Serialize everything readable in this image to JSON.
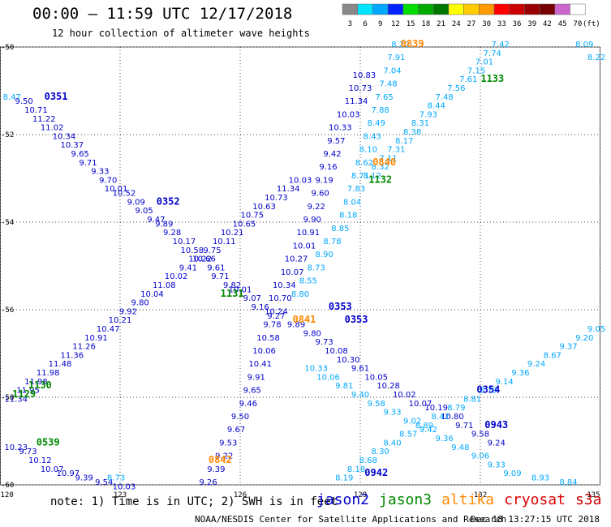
{
  "title": "00:00 – 11:59 UTC 12/17/2018",
  "subtitle": "12 hour collection of altimeter wave heights",
  "note": "note: 1) Time is in UTC; 2) SWH is in feet",
  "footer_left": "NOAA/NESDIS Center for Satellite Applications and Research",
  "footer_right": "Dec 18 13:27:15 UTC 2018",
  "satellites": [
    {
      "name": "jason2",
      "color": "#0000cc"
    },
    {
      "name": "jason3",
      "color": "#008800"
    },
    {
      "name": "altika",
      "color": "#ff8800"
    },
    {
      "name": "cryosat",
      "color": "#dd0000"
    },
    {
      "name": "s3a",
      "color": "#cc0000"
    }
  ],
  "color_legend": {
    "unit": "(ft)",
    "labels": [
      "3",
      "6",
      "9",
      "12",
      "15",
      "18",
      "21",
      "24",
      "27",
      "30",
      "33",
      "36",
      "39",
      "42",
      "45",
      "70"
    ],
    "colors": [
      "#888888",
      "#00e5ff",
      "#00a8ff",
      "#0022ff",
      "#00dd00",
      "#00aa00",
      "#007700",
      "#ffff00",
      "#ffcc00",
      "#ff9900",
      "#ff0000",
      "#cc0000",
      "#990000",
      "#770000",
      "#cc66cc",
      "#ffffff"
    ]
  },
  "chart_data": {
    "type": "scatter",
    "xlim": [
      120,
      135
    ],
    "ylim": [
      -60,
      -50
    ],
    "x_ticks": [
      "120",
      "123",
      "126",
      "129",
      "132",
      "135"
    ],
    "y_ticks": [
      "-50",
      "-52",
      "-54",
      "-56",
      "-58",
      "-60"
    ],
    "grid": true,
    "time_labels": [
      {
        "text": "0351",
        "color": "#0000cc",
        "x": 121.4,
        "y": -51.2
      },
      {
        "text": "0352",
        "color": "#0000cc",
        "x": 124.2,
        "y": -53.6
      },
      {
        "text": "0353",
        "color": "#0000cc",
        "x": 128.5,
        "y": -56.0
      },
      {
        "text": "0353",
        "color": "#0000cc",
        "x": 128.9,
        "y": -56.3
      },
      {
        "text": "0354",
        "color": "#0000cc",
        "x": 132.2,
        "y": -57.9
      },
      {
        "text": "0943",
        "color": "#0000cc",
        "x": 132.4,
        "y": -58.7
      },
      {
        "text": "0942",
        "color": "#0000cc",
        "x": 129.4,
        "y": -59.8
      },
      {
        "text": "0839",
        "color": "#ff8800",
        "x": 130.3,
        "y": -50.0
      },
      {
        "text": "0840",
        "color": "#ff8800",
        "x": 129.6,
        "y": -52.7
      },
      {
        "text": "0841",
        "color": "#ff8800",
        "x": 127.6,
        "y": -56.3
      },
      {
        "text": "0842",
        "color": "#ff8800",
        "x": 125.5,
        "y": -59.5
      },
      {
        "text": "1133",
        "color": "#008800",
        "x": 132.3,
        "y": -50.8
      },
      {
        "text": "1132",
        "color": "#008800",
        "x": 129.5,
        "y": -53.1
      },
      {
        "text": "1131",
        "color": "#008800",
        "x": 125.8,
        "y": -55.7
      },
      {
        "text": "1130",
        "color": "#008800",
        "x": 121.0,
        "y": -57.8
      },
      {
        "text": "1129",
        "color": "#008800",
        "x": 120.6,
        "y": -58.0
      },
      {
        "text": "0539",
        "color": "#008800",
        "x": 121.2,
        "y": -59.1
      }
    ],
    "series": [
      {
        "track": "jason2-0351",
        "color": "#0000cc",
        "points": [
          [
            120.6,
            -51.3,
            "9.50"
          ],
          [
            120.9,
            -51.5,
            "10.71"
          ],
          [
            121.1,
            -51.7,
            "11.22"
          ],
          [
            121.3,
            -51.9,
            "11.02"
          ],
          [
            121.6,
            -52.1,
            "10.34"
          ],
          [
            121.8,
            -52.3,
            "10.37"
          ],
          [
            122.0,
            -52.5,
            "9.65"
          ],
          [
            122.2,
            -52.7,
            "9.71"
          ],
          [
            122.5,
            -52.9,
            "9.33"
          ],
          [
            122.7,
            -53.1,
            "9.70"
          ],
          [
            122.9,
            -53.3,
            "10.01"
          ],
          [
            123.1,
            -53.4,
            "10.52"
          ],
          [
            123.4,
            -53.6,
            "9.09"
          ],
          [
            123.6,
            -53.8,
            "9.05"
          ],
          [
            123.9,
            -54.0,
            "9.47"
          ],
          [
            124.1,
            -54.1,
            "9.89"
          ],
          [
            124.3,
            -54.3,
            "9.28"
          ],
          [
            124.6,
            -54.5,
            "10.17"
          ],
          [
            124.8,
            -54.7,
            "10.58"
          ],
          [
            125.1,
            -54.9,
            "10.66"
          ],
          [
            125.4,
            -55.1,
            "9.61"
          ],
          [
            125.5,
            -55.3,
            "9.71"
          ],
          [
            125.8,
            -55.5,
            "9.82"
          ],
          [
            126.0,
            -55.6,
            "10.01"
          ],
          [
            126.3,
            -55.8,
            "9.07"
          ],
          [
            126.5,
            -56.0,
            "9.16"
          ],
          [
            126.9,
            -56.2,
            "9.27"
          ],
          [
            127.4,
            -56.4,
            "9.89"
          ],
          [
            127.8,
            -56.6,
            "9.80"
          ],
          [
            128.1,
            -56.8,
            "9.73"
          ],
          [
            128.4,
            -57.0,
            "10.08"
          ],
          [
            128.7,
            -57.2,
            "10.30"
          ],
          [
            129.0,
            -57.4,
            "9.61"
          ],
          [
            129.4,
            -57.6,
            "10.05"
          ],
          [
            129.7,
            -57.8,
            "10.28"
          ],
          [
            130.1,
            -58.0,
            "10.02"
          ],
          [
            130.5,
            -58.2,
            "10.07"
          ],
          [
            130.9,
            -58.3,
            "10.19"
          ],
          [
            131.3,
            -58.5,
            "10.80"
          ],
          [
            131.6,
            -58.7,
            "9.71"
          ],
          [
            132.0,
            -58.9,
            "9.58"
          ],
          [
            132.4,
            -59.1,
            "9.24"
          ]
        ]
      },
      {
        "track": "jason2-0942",
        "color": "#0000cc",
        "points": [
          [
            125.2,
            -60.0,
            "9.26"
          ],
          [
            125.4,
            -59.7,
            "9.39"
          ],
          [
            125.6,
            -59.4,
            "9.22"
          ],
          [
            125.7,
            -59.1,
            "9.53"
          ],
          [
            125.9,
            -58.8,
            "9.67"
          ],
          [
            126.0,
            -58.5,
            "9.50"
          ],
          [
            126.2,
            -58.2,
            "9.46"
          ],
          [
            126.3,
            -57.9,
            "9.65"
          ],
          [
            126.4,
            -57.6,
            "9.91"
          ],
          [
            126.5,
            -57.3,
            "10.41"
          ],
          [
            126.6,
            -57.0,
            "10.06"
          ],
          [
            126.7,
            -56.7,
            "10.58"
          ],
          [
            126.8,
            -56.4,
            "9.78"
          ],
          [
            126.9,
            -56.1,
            "10.24"
          ],
          [
            127.0,
            -55.8,
            "10.70"
          ],
          [
            127.1,
            -55.5,
            "10.34"
          ],
          [
            127.3,
            -55.2,
            "10.07"
          ],
          [
            127.4,
            -54.9,
            "10.27"
          ],
          [
            127.6,
            -54.6,
            "10.01"
          ],
          [
            127.7,
            -54.3,
            "10.91"
          ],
          [
            127.8,
            -54.0,
            "9.90"
          ],
          [
            127.9,
            -53.7,
            "9.22"
          ],
          [
            128.0,
            -53.4,
            "9.60"
          ],
          [
            128.1,
            -53.1,
            "9.19"
          ],
          [
            128.2,
            -52.8,
            "9.16"
          ],
          [
            128.3,
            -52.5,
            "9.42"
          ],
          [
            128.4,
            -52.2,
            "9.57"
          ],
          [
            128.5,
            -51.9,
            "10.33"
          ],
          [
            128.7,
            -51.6,
            "10.03"
          ],
          [
            128.9,
            -51.3,
            "11.34"
          ],
          [
            129.0,
            -51.0,
            "10.73"
          ],
          [
            129.1,
            -50.7,
            "10.83"
          ]
        ]
      },
      {
        "track": "jason3-1129",
        "color": "#0000cc",
        "points": [
          [
            120.4,
            -58.1,
            "11.34"
          ],
          [
            120.7,
            -57.9,
            "11.95"
          ],
          [
            120.9,
            -57.7,
            "11.98"
          ],
          [
            121.2,
            -57.5,
            "11.98"
          ],
          [
            121.5,
            -57.3,
            "11.48"
          ],
          [
            121.8,
            -57.1,
            "11.36"
          ],
          [
            122.1,
            -56.9,
            "11.26"
          ],
          [
            122.4,
            -56.7,
            "10.91"
          ],
          [
            122.7,
            -56.5,
            "10.47"
          ],
          [
            123.0,
            -56.3,
            "10.21"
          ],
          [
            123.2,
            -56.1,
            "9.92"
          ],
          [
            123.5,
            -55.9,
            "9.80"
          ],
          [
            123.8,
            -55.7,
            "10.04"
          ],
          [
            124.1,
            -55.5,
            "11.08"
          ],
          [
            124.4,
            -55.3,
            "10.02"
          ],
          [
            124.7,
            -55.1,
            "9.41"
          ],
          [
            125.0,
            -54.9,
            "10.22"
          ],
          [
            125.3,
            -54.7,
            "9.75"
          ],
          [
            125.6,
            -54.5,
            "10.11"
          ],
          [
            125.8,
            -54.3,
            "10.21"
          ],
          [
            126.1,
            -54.1,
            "10.65"
          ],
          [
            126.3,
            -53.9,
            "10.75"
          ],
          [
            126.6,
            -53.7,
            "10.63"
          ],
          [
            126.9,
            -53.5,
            "10.73"
          ],
          [
            127.2,
            -53.3,
            "11.34"
          ],
          [
            127.5,
            -53.1,
            "10.03"
          ]
        ]
      },
      {
        "track": "altika-0839",
        "color": "#00a8ff",
        "points": [
          [
            130.0,
            -50.0,
            "8.20"
          ],
          [
            129.9,
            -50.3,
            "7.91"
          ],
          [
            129.8,
            -50.6,
            "7.04"
          ],
          [
            129.7,
            -50.9,
            "7.48"
          ],
          [
            129.6,
            -51.2,
            "7.65"
          ],
          [
            129.5,
            -51.5,
            "7.88"
          ],
          [
            129.4,
            -51.8,
            "8.49"
          ],
          [
            129.3,
            -52.1,
            "8.43"
          ],
          [
            129.2,
            -52.4,
            "8.10"
          ],
          [
            129.1,
            -52.7,
            "8.62"
          ],
          [
            129.0,
            -53.0,
            "8.71"
          ],
          [
            128.9,
            -53.3,
            "7.83"
          ],
          [
            128.8,
            -53.6,
            "8.04"
          ],
          [
            128.7,
            -53.9,
            "8.18"
          ],
          [
            128.5,
            -54.2,
            "8.85"
          ],
          [
            128.3,
            -54.5,
            "8.78"
          ],
          [
            128.1,
            -54.8,
            "8.90"
          ],
          [
            127.9,
            -55.1,
            "8.73"
          ],
          [
            127.7,
            -55.4,
            "8.55"
          ],
          [
            127.5,
            -55.7,
            "8.80"
          ]
        ]
      },
      {
        "track": "altika-0942",
        "color": "#00a8ff",
        "points": [
          [
            128.6,
            -59.9,
            "8.19"
          ],
          [
            128.9,
            -59.7,
            "8.18"
          ],
          [
            129.2,
            -59.5,
            "8.68"
          ],
          [
            129.5,
            -59.3,
            "8.30"
          ],
          [
            129.8,
            -59.1,
            "8.40"
          ],
          [
            130.2,
            -58.9,
            "8.57"
          ],
          [
            130.6,
            -58.7,
            "8.89"
          ],
          [
            131.0,
            -58.5,
            "8.42"
          ],
          [
            131.4,
            -58.3,
            "8.79"
          ],
          [
            131.8,
            -58.1,
            "8.81"
          ],
          [
            132.2,
            -57.9,
            "8.79"
          ],
          [
            132.6,
            -57.7,
            "9.14"
          ],
          [
            133.0,
            -57.5,
            "9.36"
          ],
          [
            133.4,
            -57.3,
            "9.24"
          ],
          [
            133.8,
            -57.1,
            "8.67"
          ],
          [
            134.2,
            -56.9,
            "9.37"
          ],
          [
            134.6,
            -56.7,
            "9.20"
          ],
          [
            134.9,
            -56.5,
            "9.05"
          ]
        ]
      },
      {
        "track": "altika-0840",
        "color": "#00a8ff",
        "points": [
          [
            132.5,
            -50.0,
            "7.42"
          ],
          [
            132.3,
            -50.2,
            "7.74"
          ],
          [
            132.1,
            -50.4,
            "7.01"
          ],
          [
            131.9,
            -50.6,
            "7.15"
          ],
          [
            131.7,
            -50.8,
            "7.61"
          ],
          [
            131.4,
            -51.0,
            "7.56"
          ],
          [
            131.1,
            -51.2,
            "7.48"
          ],
          [
            130.9,
            -51.4,
            "8.44"
          ],
          [
            130.7,
            -51.6,
            "7.93"
          ],
          [
            130.5,
            -51.8,
            "8.31"
          ],
          [
            130.3,
            -52.0,
            "8.38"
          ],
          [
            130.1,
            -52.2,
            "8.17"
          ],
          [
            129.9,
            -52.4,
            "7.31"
          ],
          [
            129.7,
            -52.6,
            "7.11"
          ],
          [
            129.5,
            -52.8,
            "8.32"
          ],
          [
            129.3,
            -53.0,
            "8.12"
          ]
        ]
      },
      {
        "track": "altika-0943",
        "color": "#00a8ff",
        "points": [
          [
            127.9,
            -57.4,
            "10.33"
          ],
          [
            128.2,
            -57.6,
            "10.06"
          ],
          [
            128.6,
            -57.8,
            "9.81"
          ],
          [
            129.0,
            -58.0,
            "9.40"
          ],
          [
            129.4,
            -58.2,
            "9.58"
          ],
          [
            129.8,
            -58.4,
            "9.33"
          ],
          [
            130.3,
            -58.6,
            "9.02"
          ],
          [
            130.7,
            -58.8,
            "9.42"
          ],
          [
            131.1,
            -59.0,
            "9.36"
          ],
          [
            131.5,
            -59.2,
            "9.48"
          ],
          [
            132.0,
            -59.4,
            "9.06"
          ],
          [
            132.4,
            -59.6,
            "9.33"
          ],
          [
            132.8,
            -59.8,
            "9.09"
          ],
          [
            133.5,
            -59.9,
            "8.93"
          ],
          [
            134.2,
            -60.0,
            "8.84"
          ]
        ]
      },
      {
        "track": "jason2-0539",
        "color": "#0000cc",
        "points": [
          [
            120.4,
            -59.2,
            "10.23"
          ],
          [
            120.7,
            -59.3,
            "9.73"
          ],
          [
            121.0,
            -59.5,
            "10.12"
          ],
          [
            121.3,
            -59.7,
            "10.07"
          ],
          [
            121.7,
            -59.8,
            "10.97"
          ],
          [
            122.1,
            -59.9,
            "9.39"
          ],
          [
            122.6,
            -60.0,
            "9.54"
          ],
          [
            123.1,
            -60.1,
            "10.03"
          ]
        ]
      },
      {
        "track": "other-cyan",
        "color": "#00a8ff",
        "points": [
          [
            120.3,
            -51.2,
            "8.47"
          ],
          [
            122.9,
            -59.9,
            "8.73"
          ],
          [
            134.6,
            -50.0,
            "8.09"
          ],
          [
            134.9,
            -50.3,
            "8.22"
          ]
        ]
      }
    ]
  }
}
